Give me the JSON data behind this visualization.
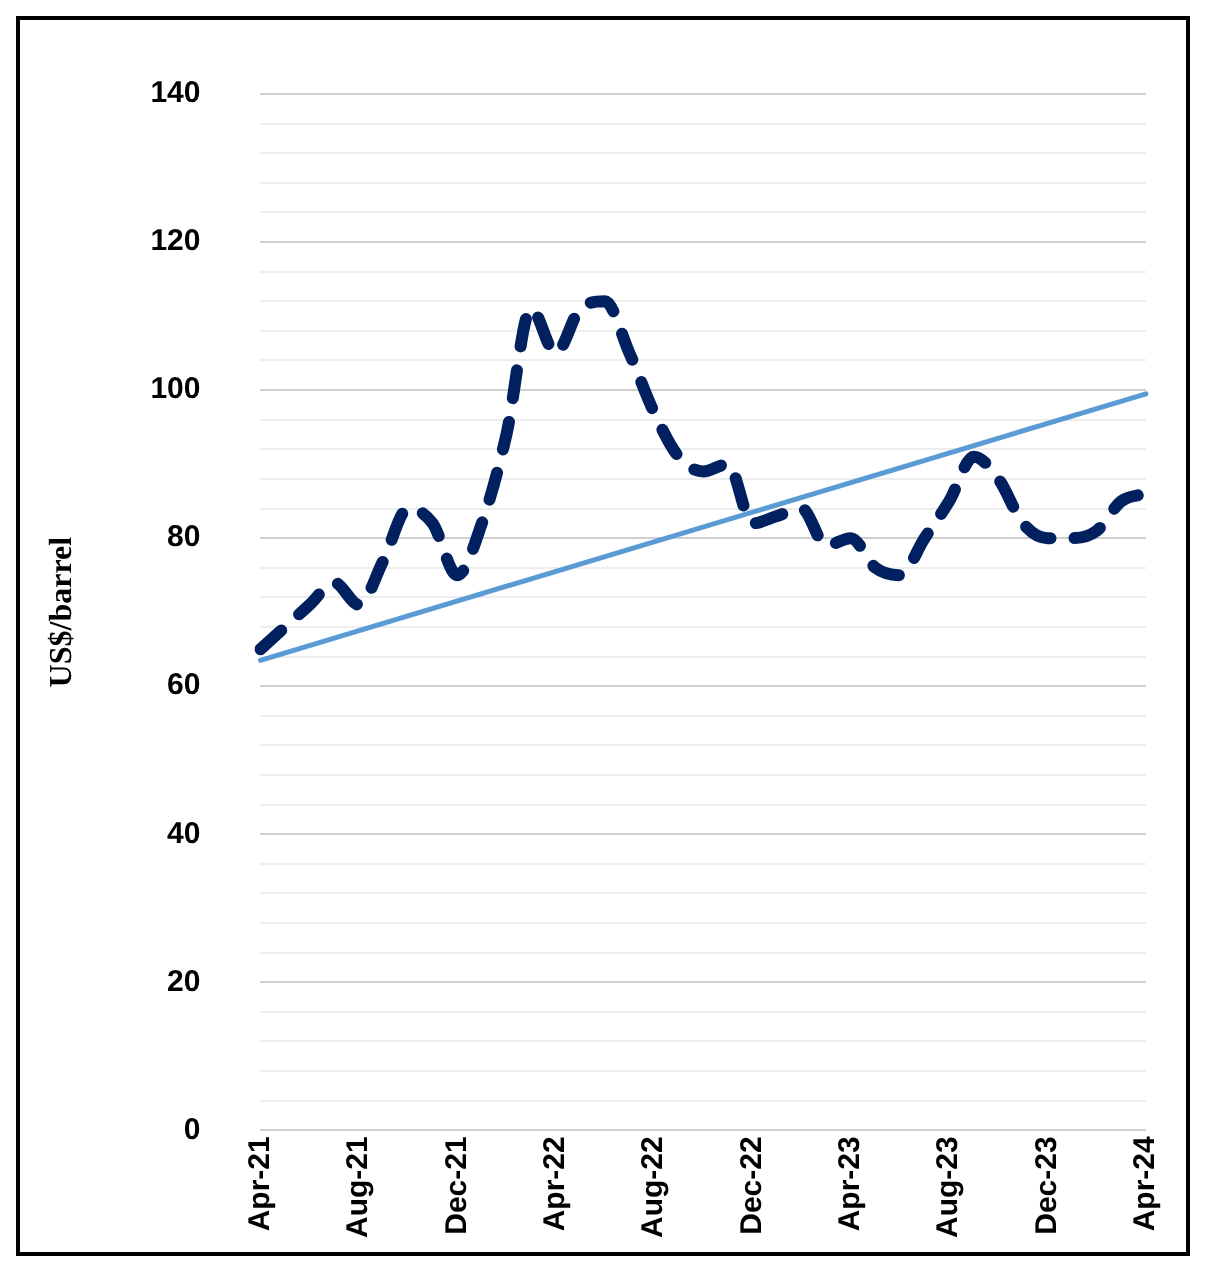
{
  "chart_data": {
    "type": "line",
    "ylabel": "US$/barrel",
    "categories": [
      "Apr-21",
      null,
      null,
      null,
      "Aug-21",
      null,
      null,
      null,
      "Dec-21",
      null,
      null,
      null,
      "Apr-22",
      null,
      null,
      null,
      "Aug-22",
      null,
      null,
      null,
      "Dec-22",
      null,
      null,
      null,
      "Apr-23",
      null,
      null,
      null,
      "Aug-23",
      null,
      null,
      null,
      "Dec-23",
      null,
      null,
      null,
      "Apr-24"
    ],
    "series": [
      {
        "color": "#002060",
        "line_style": "dashed",
        "values": [
          65,
          68,
          71,
          74,
          71,
          77,
          84,
          82,
          75,
          82,
          94,
          111,
          105,
          111,
          112,
          105,
          97,
          91,
          89,
          90,
          82,
          83,
          84,
          79,
          80,
          76,
          75,
          80,
          85,
          91,
          88,
          82,
          80,
          80,
          81,
          85,
          86
        ]
      },
      {
        "type": "line",
        "color": "#5b9bd5",
        "line_style": "solid",
        "values": [
          63.5,
          null,
          null,
          null,
          null,
          null,
          null,
          null,
          null,
          null,
          null,
          null,
          null,
          null,
          null,
          null,
          null,
          null,
          null,
          null,
          null,
          null,
          null,
          null,
          null,
          null,
          null,
          null,
          null,
          null,
          null,
          null,
          null,
          null,
          null,
          null,
          99.5
        ]
      }
    ],
    "ylim": [
      0,
      140
    ],
    "yticks": [
      0,
      {
        "value": 4,
        "label": null
      },
      {
        "value": 8,
        "label": null
      },
      {
        "value": 12,
        "label": null
      },
      {
        "value": 16,
        "label": null
      },
      20,
      {
        "value": 24,
        "label": null
      },
      {
        "value": 28,
        "label": null
      },
      {
        "value": 32,
        "label": null
      },
      {
        "value": 36,
        "label": null
      },
      40,
      {
        "value": 44,
        "label": null
      },
      {
        "value": 48,
        "label": null
      },
      {
        "value": 52,
        "label": null
      },
      {
        "value": 56,
        "label": null
      },
      60,
      {
        "value": 64,
        "label": null
      },
      {
        "value": 68,
        "label": null
      },
      {
        "value": 72,
        "label": null
      },
      {
        "value": 76,
        "label": null
      },
      80,
      {
        "value": 84,
        "label": null
      },
      {
        "value": 88,
        "label": null
      },
      {
        "value": 92,
        "label": null
      },
      {
        "value": 96,
        "label": null
      },
      100,
      {
        "value": 104,
        "label": null
      },
      {
        "value": 108,
        "label": null
      },
      {
        "value": 112,
        "label": null
      },
      {
        "value": 116,
        "label": null
      },
      120,
      {
        "value": 124,
        "label": null
      },
      {
        "value": 128,
        "label": null
      },
      {
        "value": 132,
        "label": null
      },
      {
        "value": 136,
        "label": null
      },
      140
    ],
    "grid": "y",
    "legend": false,
    "marker": "none"
  }
}
